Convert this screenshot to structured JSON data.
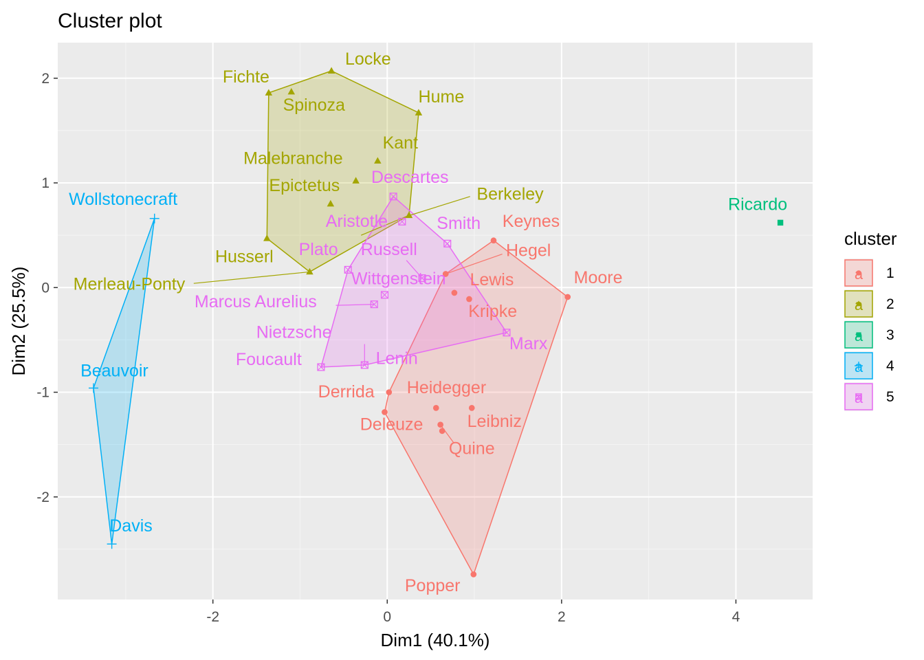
{
  "chart_data": {
    "type": "scatter",
    "title": "Cluster plot",
    "xlabel": "Dim1 (40.1%)",
    "ylabel": "Dim2 (25.5%)",
    "xlim": [
      -3.78,
      4.88
    ],
    "ylim": [
      -2.98,
      2.34
    ],
    "x_ticks": [
      -2,
      0,
      2,
      4
    ],
    "y_ticks": [
      -2,
      -1,
      0,
      1,
      2
    ],
    "grid": true,
    "legend": {
      "title": "cluster",
      "position": "right",
      "items": [
        {
          "key": "1",
          "label": "1"
        },
        {
          "key": "2",
          "label": "2"
        },
        {
          "key": "3",
          "label": "3"
        },
        {
          "key": "4",
          "label": "4"
        },
        {
          "key": "5",
          "label": "5"
        }
      ]
    },
    "clusters": {
      "1": {
        "color": "#F8766D",
        "shape": "circle",
        "hull": [
          "Keynes",
          "Moore",
          "Popper",
          "Deleuze",
          "Derrida",
          "Hegel"
        ]
      },
      "2": {
        "color": "#A3A500",
        "shape": "triangle",
        "hull": [
          "Locke",
          "Hume",
          "Berkeley",
          "Plato",
          "Husserl",
          "Fichte"
        ]
      },
      "3": {
        "color": "#00BF7D",
        "shape": "square",
        "hull": []
      },
      "4": {
        "color": "#00B0F6",
        "shape": "plus",
        "hull": [
          "Wollstonecraft",
          "Beauvoir",
          "Davis"
        ]
      },
      "5": {
        "color": "#E76BF3",
        "shape": "boxcross",
        "hull": [
          "Descartes",
          "Smith",
          "Marx",
          "Lenin",
          "Foucault",
          "Russell"
        ]
      }
    },
    "points": [
      {
        "name": "Keynes",
        "cluster": "1",
        "x": 1.22,
        "y": 0.45
      },
      {
        "name": "Hegel",
        "cluster": "1",
        "x": 0.67,
        "y": 0.13
      },
      {
        "name": "Lewis",
        "cluster": "1",
        "x": 0.77,
        "y": -0.05
      },
      {
        "name": "Moore",
        "cluster": "1",
        "x": 2.07,
        "y": -0.09
      },
      {
        "name": "Kripke",
        "cluster": "1",
        "x": 0.94,
        "y": -0.11
      },
      {
        "name": "Derrida",
        "cluster": "1",
        "x": 0.02,
        "y": -1.0
      },
      {
        "name": "Heidegger",
        "cluster": "1",
        "x": 0.56,
        "y": -1.15
      },
      {
        "name": "Leibniz",
        "cluster": "1",
        "x": 0.97,
        "y": -1.15
      },
      {
        "name": "Deleuze",
        "cluster": "1",
        "x": -0.03,
        "y": -1.19
      },
      {
        "name": "Quine",
        "cluster": "1",
        "x": 0.61,
        "y": -1.31
      },
      {
        "name": "Moore2",
        "cluster": "1",
        "x": 0.63,
        "y": -1.37,
        "hidden_label": true
      },
      {
        "name": "Popper",
        "cluster": "1",
        "x": 0.99,
        "y": -2.74
      },
      {
        "name": "Locke",
        "cluster": "2",
        "x": -0.64,
        "y": 2.07
      },
      {
        "name": "Fichte",
        "cluster": "2",
        "x": -1.36,
        "y": 1.86
      },
      {
        "name": "Spinoza",
        "cluster": "2",
        "x": -1.1,
        "y": 1.87
      },
      {
        "name": "Hume",
        "cluster": "2",
        "x": 0.36,
        "y": 1.67
      },
      {
        "name": "Kant",
        "cluster": "2",
        "x": -0.11,
        "y": 1.21
      },
      {
        "name": "Malebranche",
        "cluster": "2",
        "x": -0.36,
        "y": 1.02
      },
      {
        "name": "Epictetus",
        "cluster": "2",
        "x": -0.65,
        "y": 0.8
      },
      {
        "name": "Berkeley",
        "cluster": "2",
        "x": 0.25,
        "y": 0.69
      },
      {
        "name": "Husserl",
        "cluster": "2",
        "x": -1.38,
        "y": 0.47
      },
      {
        "name": "Plato",
        "cluster": "2",
        "x": -0.89,
        "y": 0.15
      },
      {
        "name": "Merleau-Ponty",
        "cluster": "2",
        "x": -0.89,
        "y": 0.15,
        "hidden_marker": true
      },
      {
        "name": "Ricardo",
        "cluster": "3",
        "x": 4.51,
        "y": 0.62
      },
      {
        "name": "Wollstonecraft",
        "cluster": "4",
        "x": -2.67,
        "y": 0.66
      },
      {
        "name": "Beauvoir",
        "cluster": "4",
        "x": -3.37,
        "y": -0.96
      },
      {
        "name": "Davis",
        "cluster": "4",
        "x": -3.16,
        "y": -2.45
      },
      {
        "name": "Descartes",
        "cluster": "5",
        "x": 0.07,
        "y": 0.87
      },
      {
        "name": "Aristotle",
        "cluster": "5",
        "x": 0.17,
        "y": 0.63
      },
      {
        "name": "Smith",
        "cluster": "5",
        "x": 0.69,
        "y": 0.42
      },
      {
        "name": "Russell",
        "cluster": "5",
        "x": -0.45,
        "y": 0.17
      },
      {
        "name": "Wittgenstein",
        "cluster": "5",
        "x": 0.4,
        "y": 0.09
      },
      {
        "name": "Plato5",
        "cluster": "5",
        "x": -0.03,
        "y": -0.07,
        "hidden_label": true
      },
      {
        "name": "Marcus Aurelius",
        "cluster": "5",
        "x": -0.15,
        "y": -0.16
      },
      {
        "name": "Marx",
        "cluster": "5",
        "x": 1.37,
        "y": -0.43
      },
      {
        "name": "Nietzsche",
        "cluster": "5",
        "x": -0.26,
        "y": -0.74
      },
      {
        "name": "Lenin",
        "cluster": "5",
        "x": -0.26,
        "y": -0.74,
        "hidden_marker": true
      },
      {
        "name": "Foucault",
        "cluster": "5",
        "x": -0.76,
        "y": -0.76
      }
    ],
    "labels": [
      {
        "text": "Keynes",
        "cluster": "1",
        "x": 1.65,
        "y": 0.58
      },
      {
        "text": "Hegel",
        "cluster": "1",
        "x": 1.62,
        "y": 0.3
      },
      {
        "text": "Lewis",
        "cluster": "1",
        "x": 1.2,
        "y": 0.02
      },
      {
        "text": "Moore",
        "cluster": "1",
        "x": 2.42,
        "y": 0.04
      },
      {
        "text": "Kripke",
        "cluster": "1",
        "x": 1.21,
        "y": -0.28
      },
      {
        "text": "Derrida",
        "cluster": "1",
        "x": -0.47,
        "y": -1.05
      },
      {
        "text": "Heidegger",
        "cluster": "1",
        "x": 0.68,
        "y": -1.01
      },
      {
        "text": "Leibniz",
        "cluster": "1",
        "x": 1.23,
        "y": -1.33
      },
      {
        "text": "Deleuze",
        "cluster": "1",
        "x": 0.05,
        "y": -1.36
      },
      {
        "text": "Quine",
        "cluster": "1",
        "x": 0.97,
        "y": -1.59
      },
      {
        "text": "Popper",
        "cluster": "1",
        "x": 0.52,
        "y": -2.9
      },
      {
        "text": "Locke",
        "cluster": "2",
        "x": -0.22,
        "y": 2.13
      },
      {
        "text": "Fichte",
        "cluster": "2",
        "x": -1.62,
        "y": 1.96
      },
      {
        "text": "Spinoza",
        "cluster": "2",
        "x": -0.84,
        "y": 1.69
      },
      {
        "text": "Hume",
        "cluster": "2",
        "x": 0.62,
        "y": 1.77
      },
      {
        "text": "Kant",
        "cluster": "2",
        "x": 0.15,
        "y": 1.33
      },
      {
        "text": "Malebranche",
        "cluster": "2",
        "x": -1.08,
        "y": 1.18
      },
      {
        "text": "Epictetus",
        "cluster": "2",
        "x": -0.95,
        "y": 0.92
      },
      {
        "text": "Berkeley",
        "cluster": "2",
        "x": 1.41,
        "y": 0.84
      },
      {
        "text": "Husserl",
        "cluster": "2",
        "x": -1.64,
        "y": 0.24
      },
      {
        "text": "Merleau-Ponty",
        "cluster": "2",
        "x": -2.96,
        "y": -0.02
      },
      {
        "text": "Ricardo",
        "cluster": "3",
        "x": 4.25,
        "y": 0.74
      },
      {
        "text": "Wollstonecraft",
        "cluster": "4",
        "x": -3.03,
        "y": 0.79
      },
      {
        "text": "Beauvoir",
        "cluster": "4",
        "x": -3.13,
        "y": -0.85
      },
      {
        "text": "Davis",
        "cluster": "4",
        "x": -2.94,
        "y": -2.33
      },
      {
        "text": "Descartes",
        "cluster": "5",
        "x": 0.26,
        "y": 1.0
      },
      {
        "text": "Aristotle",
        "cluster": "5",
        "x": -0.35,
        "y": 0.58
      },
      {
        "text": "Smith",
        "cluster": "5",
        "x": 0.82,
        "y": 0.56
      },
      {
        "text": "Plato",
        "cluster": "5",
        "x": -0.79,
        "y": 0.31
      },
      {
        "text": "Russell",
        "cluster": "5",
        "x": 0.02,
        "y": 0.31
      },
      {
        "text": "Wittgenstein",
        "cluster": "5",
        "x": 0.13,
        "y": 0.03
      },
      {
        "text": "Marcus Aurelius",
        "cluster": "5",
        "x": -1.51,
        "y": -0.19
      },
      {
        "text": "Nietzsche",
        "cluster": "5",
        "x": -1.07,
        "y": -0.48
      },
      {
        "text": "Foucault",
        "cluster": "5",
        "x": -1.36,
        "y": -0.74
      },
      {
        "text": "Lenin",
        "cluster": "5",
        "x": 0.11,
        "y": -0.73
      },
      {
        "text": "Marx",
        "cluster": "5",
        "x": 1.62,
        "y": -0.59
      }
    ],
    "leaders": [
      {
        "cluster": "2",
        "from": [
          -2.22,
          0.04
        ],
        "to": [
          -0.89,
          0.15
        ]
      },
      {
        "cluster": "2",
        "from": [
          0.95,
          0.87
        ],
        "to": [
          0.22,
          0.68
        ]
      },
      {
        "cluster": "2",
        "from": [
          0.22,
          0.68
        ],
        "to": [
          -0.3,
          0.5
        ]
      },
      {
        "cluster": "1",
        "from": [
          1.32,
          0.32
        ],
        "to": [
          0.67,
          0.13
        ]
      },
      {
        "cluster": "1",
        "from": [
          0.61,
          -1.31
        ],
        "to": [
          0.76,
          -1.48
        ]
      },
      {
        "cluster": "5",
        "from": [
          -0.59,
          -0.17
        ],
        "to": [
          -0.15,
          -0.16
        ]
      },
      {
        "cluster": "5",
        "from": [
          0.22,
          0.26
        ],
        "to": [
          0.4,
          0.09
        ]
      },
      {
        "cluster": "5",
        "from": [
          -0.26,
          -0.74
        ],
        "to": [
          -0.26,
          -0.54
        ]
      }
    ]
  }
}
